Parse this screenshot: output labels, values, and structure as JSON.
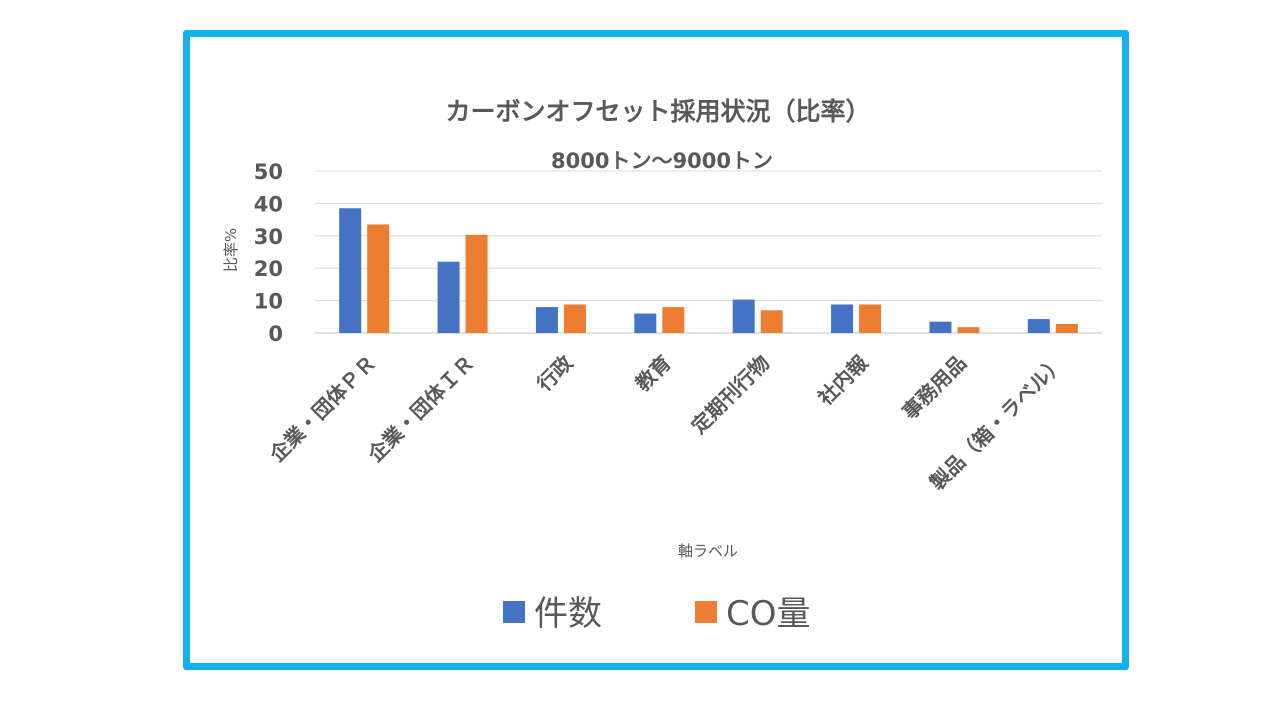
{
  "chart_data": {
    "type": "bar",
    "title": "カーボンオフセット採用状況（比率）",
    "subtitle": "8000トン～9000トン",
    "xlabel": "軸ラベル",
    "ylabel": "比率%",
    "ylim": [
      0,
      50
    ],
    "yticks": [
      "0",
      "10",
      "20",
      "30",
      "40",
      "50"
    ],
    "grid": true,
    "legend_position": "bottom",
    "categories": [
      "企業・団体ＰＲ",
      "企業・団体ＩＲ",
      "行政",
      "教育",
      "定期刊行物",
      "社内報",
      "事務用品",
      "製品（箱・ラベル）"
    ],
    "series": [
      {
        "name": "件数",
        "color": "#4472c4",
        "values": [
          38.5,
          22,
          8,
          6,
          10.3,
          8.8,
          3.5,
          4.3
        ]
      },
      {
        "name": "CO量",
        "color": "#ed7d31",
        "values": [
          33.5,
          30.3,
          8.8,
          8,
          7,
          8.8,
          1.8,
          2.8
        ]
      }
    ]
  }
}
